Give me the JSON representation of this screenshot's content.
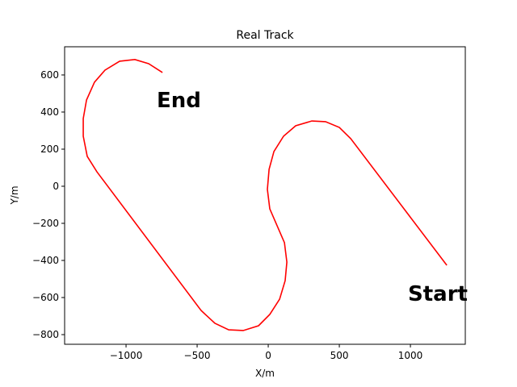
{
  "chart_data": {
    "type": "line",
    "title": "Real Track",
    "x_label": "X/m",
    "y_label": "Y/m",
    "x": [
      1256,
      580,
      500,
      403,
      307,
      193,
      108,
      40,
      6,
      -6,
      11,
      114,
      131,
      119,
      80,
      11,
      -68,
      -176,
      -278,
      -375,
      -472,
      -1205,
      -1273,
      -1301,
      -1301,
      -1278,
      -1222,
      -1148,
      -1045,
      -938,
      -841,
      -744
    ],
    "series": [
      {
        "color": "#ff0000",
        "values": [
          -426,
          257,
          317,
          348,
          352,
          326,
          270,
          187,
          91,
          -17,
          -122,
          -304,
          -409,
          -509,
          -609,
          -691,
          -752,
          -778,
          -774,
          -739,
          -670,
          78,
          161,
          270,
          365,
          465,
          561,
          626,
          674,
          683,
          661,
          613
        ]
      }
    ],
    "annotations": [
      "Start",
      "End"
    ],
    "xlim": [
      -1432,
      1386
    ],
    "ylim": [
      -852,
      752
    ],
    "xticks": [
      {
        "value": -1000,
        "label": "−1000"
      },
      {
        "value": -500,
        "label": "−500"
      },
      0,
      500,
      1000
    ],
    "yticks": [
      {
        "value": -800,
        "label": "−800"
      },
      {
        "value": -600,
        "label": "−600"
      },
      {
        "value": -400,
        "label": "−400"
      },
      {
        "value": -200,
        "label": "−200"
      },
      0,
      200,
      400,
      600
    ],
    "grid": false
  }
}
